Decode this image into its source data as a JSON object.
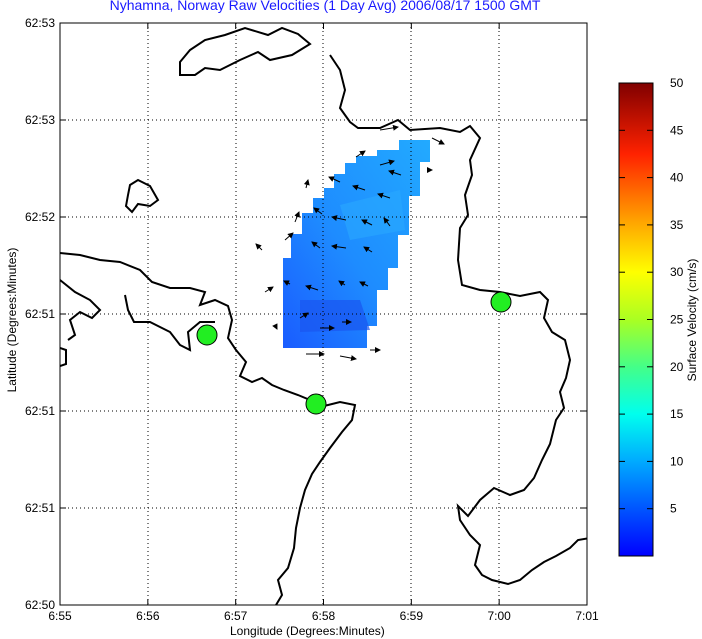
{
  "title": "Nyhamna, Norway Raw Velocities (1 Day Avg) 2006/08/17 1500 GMT",
  "axes": {
    "xlabel": "Longitude (Degrees:Minutes)",
    "ylabel": "Latitude (Degrees:Minutes)",
    "xticks": [
      "6:55",
      "6:56",
      "6:57",
      "6:58",
      "6:59",
      "7:00",
      "7:01"
    ],
    "yticks": [
      "62:53",
      "62:53",
      "62:52",
      "62:51",
      "62:51",
      "62:51",
      "62:50"
    ]
  },
  "colorbar": {
    "label": "Surface Velocity (cm/s)",
    "ticks": [
      "50",
      "45",
      "40",
      "35",
      "30",
      "25",
      "20",
      "15",
      "10",
      "5"
    ],
    "range": [
      0,
      50
    ],
    "colors": [
      "#0000ff",
      "#00ffff",
      "#00ff00",
      "#ffff00",
      "#ff0000",
      "#7f0000"
    ]
  },
  "stations": [
    {
      "name": "station-west"
    },
    {
      "name": "station-south"
    },
    {
      "name": "station-east"
    }
  ],
  "colors": {
    "title": "#1a1aff",
    "station": "#22ee22",
    "field": "#1e90ff"
  }
}
